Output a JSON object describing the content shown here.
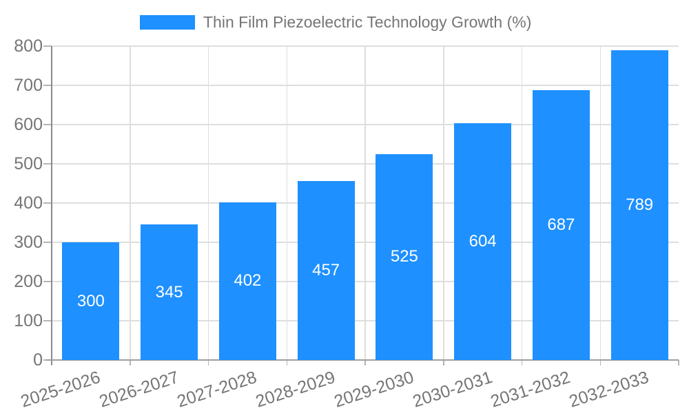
{
  "chart_data": {
    "type": "bar",
    "title": "Thin Film Piezoelectric Technology Growth (%)",
    "categories": [
      "2025-2026",
      "2026-2027",
      "2027-2028",
      "2028-2029",
      "2029-2030",
      "2030-2031",
      "2031-2032",
      "2032-2033"
    ],
    "values": [
      300,
      345,
      402,
      457,
      525,
      604,
      687,
      789
    ],
    "xlabel": "",
    "ylabel": "",
    "ylim": [
      0,
      800
    ],
    "yticks": [
      0,
      100,
      200,
      300,
      400,
      500,
      600,
      700,
      800
    ],
    "grid": true,
    "legend_position": "top",
    "x_label_rotation_deg": -18,
    "bar_color": "#1e90ff",
    "value_label_color": "#ffffff",
    "axis_text_color": "#757575",
    "grid_color": "#dedede",
    "axis_line_color": "#8a8a8a"
  }
}
